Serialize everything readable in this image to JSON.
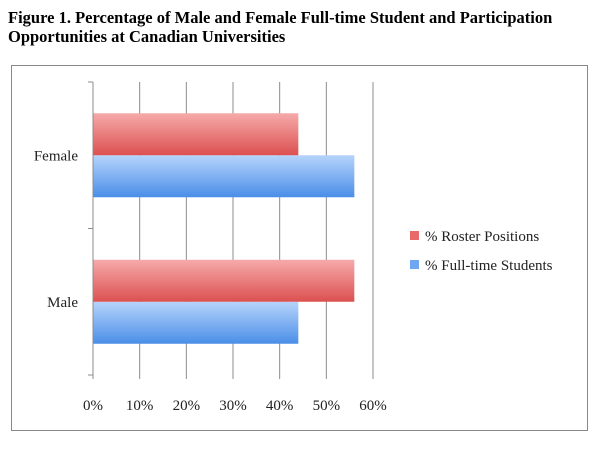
{
  "figure_title": "Figure 1. Percentage of Male and Female Full-time Student and Participation Opportunities at Canadian Universities",
  "chart_data": {
    "type": "bar",
    "orientation": "horizontal",
    "title": "",
    "xlabel": "",
    "ylabel": "",
    "categories": [
      "Male",
      "Female"
    ],
    "series": [
      {
        "name": "% Full-time Students",
        "values": [
          44,
          56
        ],
        "color": "#6fa8f0"
      },
      {
        "name": "% Roster Positions",
        "values": [
          56,
          44
        ],
        "color": "#e86a6a"
      }
    ],
    "xlim": [
      0,
      60
    ],
    "xticks": [
      "0%",
      "10%",
      "20%",
      "30%",
      "40%",
      "50%",
      "60%"
    ],
    "grid": true,
    "legend": "right"
  }
}
